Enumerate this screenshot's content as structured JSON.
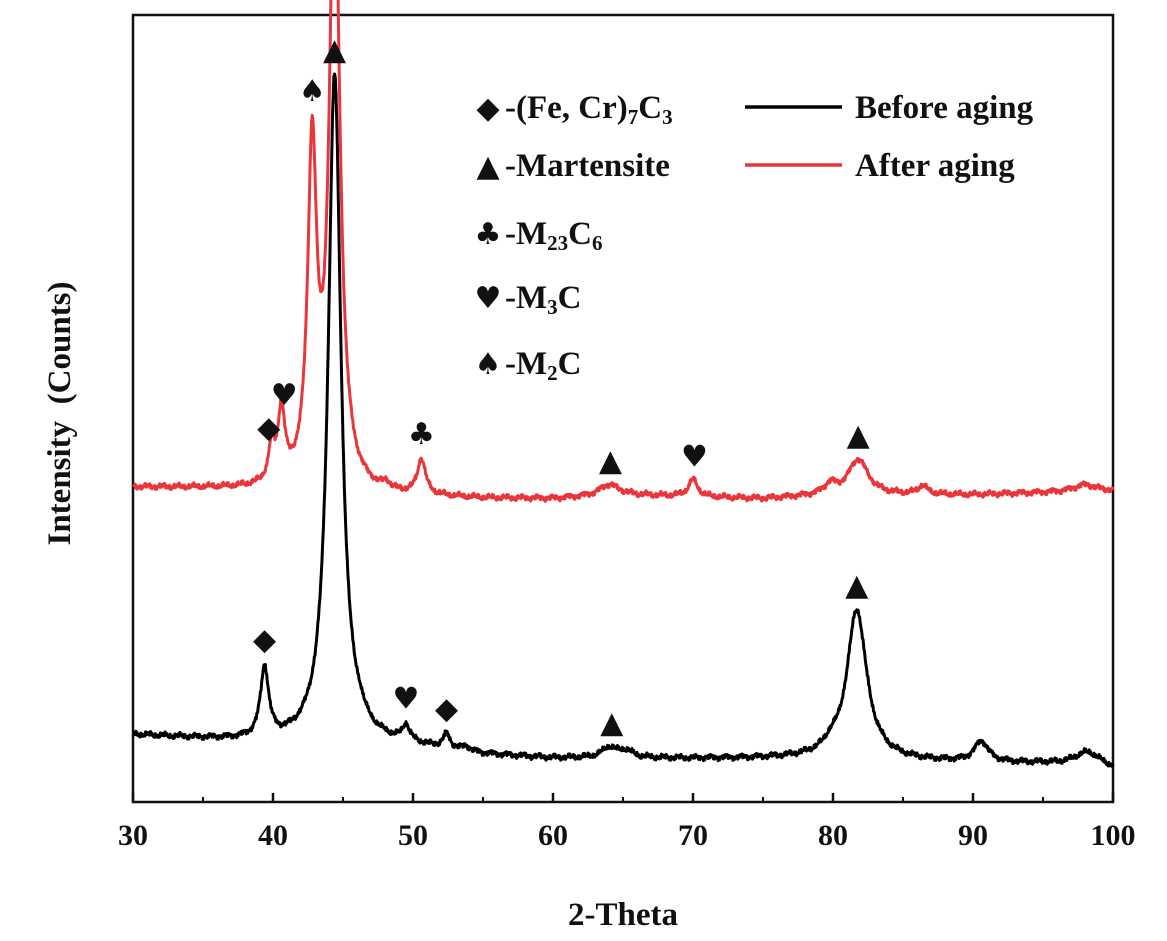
{
  "chart_data": {
    "type": "line",
    "xlabel": "2-Theta",
    "ylabel": "Intensity  (Counts)",
    "xlim": [
      30,
      100
    ],
    "xticks": [
      30,
      40,
      50,
      60,
      70,
      80,
      90,
      100
    ],
    "ylim": [
      0,
      100
    ],
    "y_ticks_labeled": false,
    "grid": false,
    "legend_position": "top-right",
    "phase_legend": [
      {
        "symbol": "◆",
        "label": "-(Fe, Cr)",
        "sub1": "7",
        "mid": "C",
        "sub2": "3"
      },
      {
        "symbol": "▲",
        "label": "-Martensite",
        "sub1": "",
        "mid": "",
        "sub2": ""
      },
      {
        "symbol": "♣",
        "label": "-M",
        "sub1": "23",
        "mid": "C",
        "sub2": "6"
      },
      {
        "symbol": "♥",
        "label": "-M",
        "sub1": "3",
        "mid": "C",
        "sub2": ""
      },
      {
        "symbol": "♠",
        "label": "-M",
        "sub1": "2",
        "mid": "C",
        "sub2": ""
      }
    ],
    "series": [
      {
        "name": "Before aging",
        "color": "#000000",
        "baseline": [
          [
            30,
            8.5
          ],
          [
            35,
            8
          ],
          [
            40,
            7.5
          ],
          [
            45,
            7.5
          ],
          [
            50,
            7
          ],
          [
            55,
            6
          ],
          [
            60,
            5.5
          ],
          [
            65,
            5.5
          ],
          [
            70,
            5.5
          ],
          [
            75,
            5.5
          ],
          [
            80,
            5.5
          ],
          [
            85,
            5.2
          ],
          [
            90,
            5
          ],
          [
            95,
            4.8
          ],
          [
            100,
            4
          ]
        ],
        "peaks": [
          {
            "x": 39.4,
            "height": 9,
            "width": 0.35
          },
          {
            "x": 44.4,
            "height": 85,
            "width": 0.55
          },
          {
            "x": 46.2,
            "height": 0.8,
            "width": 0.3
          },
          {
            "x": 49.5,
            "height": 2,
            "width": 0.3
          },
          {
            "x": 52.4,
            "height": 1.8,
            "width": 0.3
          },
          {
            "x": 53.8,
            "height": 0.6,
            "width": 0.3
          },
          {
            "x": 64.0,
            "height": 1.3,
            "width": 0.6
          },
          {
            "x": 65.2,
            "height": 0.9,
            "width": 0.6
          },
          {
            "x": 79.8,
            "height": 0.8,
            "width": 0.5
          },
          {
            "x": 81.7,
            "height": 19,
            "width": 0.85
          },
          {
            "x": 90.6,
            "height": 2.6,
            "width": 0.6
          },
          {
            "x": 98.2,
            "height": 2.0,
            "width": 1.2
          }
        ],
        "markers": [
          {
            "symbol": "◆",
            "x": 39.4
          },
          {
            "symbol": "▲",
            "x": 44.4
          },
          {
            "symbol": "♥",
            "x": 49.5
          },
          {
            "symbol": "◆",
            "x": 52.4
          },
          {
            "symbol": "▲",
            "x": 64.2
          },
          {
            "symbol": "▲",
            "x": 81.7
          }
        ]
      },
      {
        "name": "After aging",
        "color": "#e8363a",
        "baseline": [
          [
            30,
            40
          ],
          [
            35,
            39.8
          ],
          [
            40,
            39.5
          ],
          [
            45,
            39
          ],
          [
            50,
            38.7
          ],
          [
            55,
            38.5
          ],
          [
            60,
            38.5
          ],
          [
            65,
            39
          ],
          [
            70,
            38.7
          ],
          [
            75,
            38.5
          ],
          [
            80,
            39
          ],
          [
            85,
            39
          ],
          [
            90,
            39
          ],
          [
            95,
            39.3
          ],
          [
            100,
            39.5
          ]
        ],
        "peaks": [
          {
            "x": 39.9,
            "height": 4.5,
            "width": 0.25
          },
          {
            "x": 40.6,
            "height": 9,
            "width": 0.3
          },
          {
            "x": 42.8,
            "height": 42,
            "width": 0.38
          },
          {
            "x": 44.4,
            "height": 80,
            "width": 0.45
          },
          {
            "x": 48.1,
            "height": 0.8,
            "width": 0.3
          },
          {
            "x": 50.6,
            "height": 4.5,
            "width": 0.35
          },
          {
            "x": 64.0,
            "height": 1.4,
            "width": 0.8
          },
          {
            "x": 70.0,
            "height": 2.2,
            "width": 0.4
          },
          {
            "x": 79.8,
            "height": 1.2,
            "width": 0.5
          },
          {
            "x": 81.8,
            "height": 4.5,
            "width": 0.85
          },
          {
            "x": 86.4,
            "height": 1.1,
            "width": 0.4
          },
          {
            "x": 98.0,
            "height": 0.9,
            "width": 1.0
          }
        ],
        "markers": [
          {
            "symbol": "◆",
            "x": 39.7
          },
          {
            "symbol": "♥",
            "x": 40.8
          },
          {
            "symbol": "♠",
            "x": 42.8
          },
          {
            "symbol": "♣",
            "x": 50.6
          },
          {
            "symbol": "▲",
            "x": 64.1
          },
          {
            "symbol": "♥",
            "x": 70.1
          },
          {
            "symbol": "▲",
            "x": 81.8
          }
        ]
      }
    ]
  }
}
